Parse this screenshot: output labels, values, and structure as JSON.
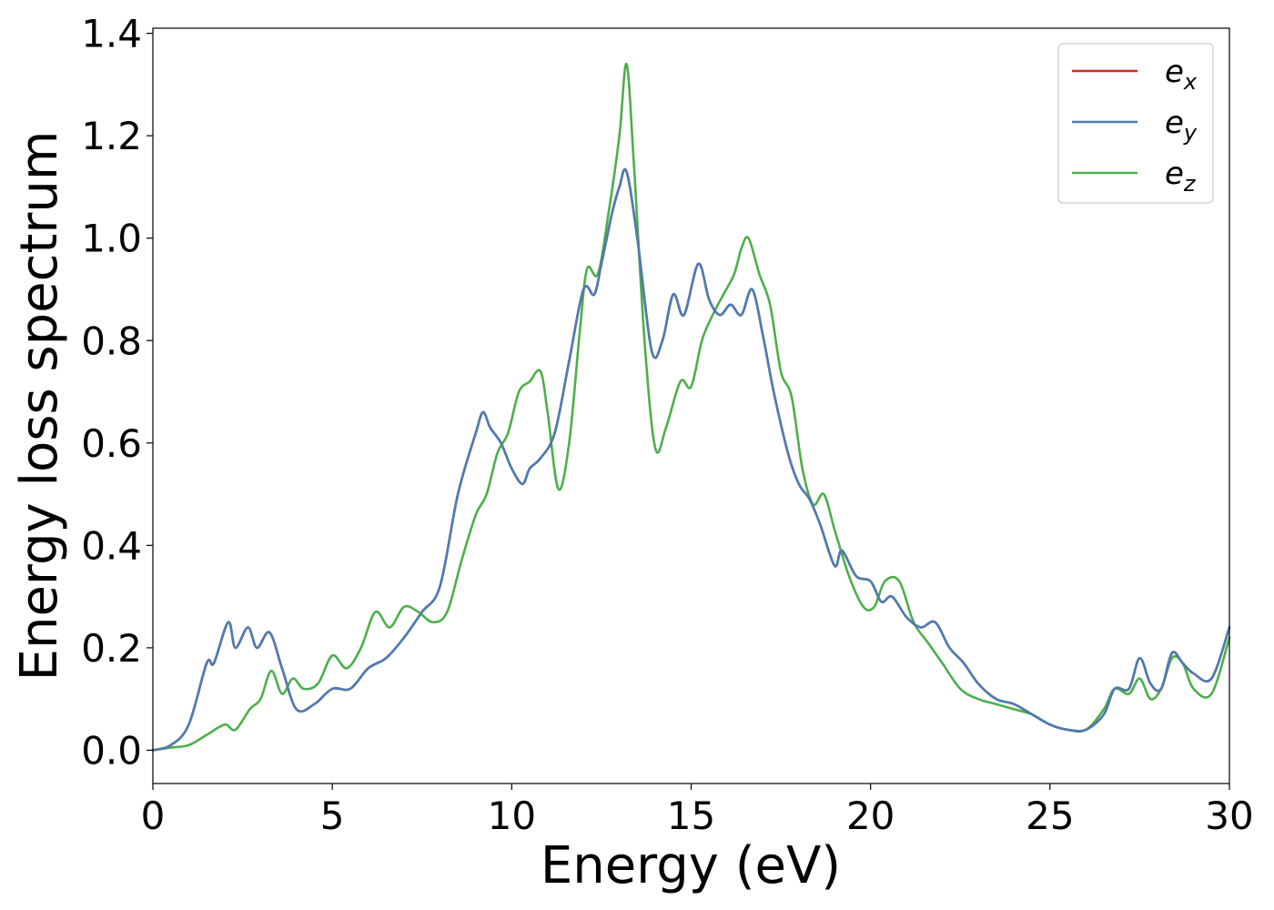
{
  "chart_data": {
    "type": "line",
    "title": "",
    "xlabel": "Energy (eV)",
    "ylabel": "Energy loss spectrum",
    "xlim": [
      0,
      30
    ],
    "ylim": [
      -0.065,
      1.41
    ],
    "xticks": [
      0,
      5,
      10,
      15,
      20,
      25,
      30
    ],
    "xtick_labels": [
      "0",
      "5",
      "10",
      "15",
      "20",
      "25",
      "30"
    ],
    "yticks": [
      0.0,
      0.2,
      0.4,
      0.6,
      0.8,
      1.0,
      1.2,
      1.4
    ],
    "ytick_labels": [
      "0.0",
      "0.2",
      "0.4",
      "0.6",
      "0.8",
      "1.0",
      "1.2",
      "1.4"
    ],
    "grid": false,
    "legend_position": "top-right",
    "series": [
      {
        "name": "e_x",
        "legend_base": "e",
        "legend_sub": "x",
        "color": "#d62728",
        "x": [
          0,
          0.5,
          1.0,
          1.5,
          1.7,
          2.1,
          2.3,
          2.65,
          2.9,
          3.25,
          3.6,
          4.0,
          4.5,
          5.0,
          5.5,
          6.0,
          6.5,
          7.0,
          7.5,
          8.0,
          8.5,
          9.0,
          9.2,
          9.4,
          9.7,
          10.0,
          10.3,
          10.5,
          10.8,
          11.2,
          11.6,
          12.0,
          12.3,
          12.5,
          12.8,
          13.0,
          13.2,
          13.5,
          13.9,
          14.2,
          14.5,
          14.8,
          15.2,
          15.5,
          15.8,
          16.1,
          16.4,
          16.7,
          17.0,
          17.3,
          17.7,
          18.0,
          18.3,
          18.6,
          19.0,
          19.2,
          19.6,
          20.0,
          20.3,
          20.6,
          21.0,
          21.4,
          21.8,
          22.2,
          22.6,
          23.0,
          23.5,
          24.0,
          24.5,
          25.0,
          25.5,
          26.0,
          26.5,
          26.8,
          27.2,
          27.5,
          27.8,
          28.1,
          28.4,
          28.7,
          29.0,
          29.5,
          30.0
        ],
        "y": [
          0.0,
          0.01,
          0.05,
          0.17,
          0.17,
          0.25,
          0.2,
          0.24,
          0.2,
          0.23,
          0.16,
          0.08,
          0.09,
          0.12,
          0.12,
          0.16,
          0.18,
          0.22,
          0.27,
          0.32,
          0.5,
          0.62,
          0.66,
          0.63,
          0.6,
          0.55,
          0.52,
          0.55,
          0.57,
          0.62,
          0.76,
          0.9,
          0.89,
          0.95,
          1.05,
          1.1,
          1.13,
          1.0,
          0.78,
          0.8,
          0.89,
          0.85,
          0.95,
          0.88,
          0.85,
          0.87,
          0.85,
          0.9,
          0.81,
          0.7,
          0.58,
          0.52,
          0.49,
          0.44,
          0.36,
          0.39,
          0.34,
          0.33,
          0.29,
          0.3,
          0.26,
          0.24,
          0.25,
          0.2,
          0.17,
          0.13,
          0.1,
          0.09,
          0.07,
          0.05,
          0.04,
          0.04,
          0.07,
          0.12,
          0.12,
          0.18,
          0.13,
          0.12,
          0.19,
          0.17,
          0.15,
          0.14,
          0.24
        ]
      },
      {
        "name": "e_y",
        "legend_base": "e",
        "legend_sub": "y",
        "color": "#4a7db3",
        "x": [
          0,
          0.5,
          1.0,
          1.5,
          1.7,
          2.1,
          2.3,
          2.65,
          2.9,
          3.25,
          3.6,
          4.0,
          4.5,
          5.0,
          5.5,
          6.0,
          6.5,
          7.0,
          7.5,
          8.0,
          8.5,
          9.0,
          9.2,
          9.4,
          9.7,
          10.0,
          10.3,
          10.5,
          10.8,
          11.2,
          11.6,
          12.0,
          12.3,
          12.5,
          12.8,
          13.0,
          13.2,
          13.5,
          13.9,
          14.2,
          14.5,
          14.8,
          15.2,
          15.5,
          15.8,
          16.1,
          16.4,
          16.7,
          17.0,
          17.3,
          17.7,
          18.0,
          18.3,
          18.6,
          19.0,
          19.2,
          19.6,
          20.0,
          20.3,
          20.6,
          21.0,
          21.4,
          21.8,
          22.2,
          22.6,
          23.0,
          23.5,
          24.0,
          24.5,
          25.0,
          25.5,
          26.0,
          26.5,
          26.8,
          27.2,
          27.5,
          27.8,
          28.1,
          28.4,
          28.7,
          29.0,
          29.5,
          30.0
        ],
        "y": [
          0.0,
          0.01,
          0.05,
          0.17,
          0.17,
          0.25,
          0.2,
          0.24,
          0.2,
          0.23,
          0.16,
          0.08,
          0.09,
          0.12,
          0.12,
          0.16,
          0.18,
          0.22,
          0.27,
          0.32,
          0.5,
          0.62,
          0.66,
          0.63,
          0.6,
          0.55,
          0.52,
          0.55,
          0.57,
          0.62,
          0.76,
          0.9,
          0.89,
          0.95,
          1.05,
          1.1,
          1.13,
          1.0,
          0.78,
          0.8,
          0.89,
          0.85,
          0.95,
          0.88,
          0.85,
          0.87,
          0.85,
          0.9,
          0.81,
          0.7,
          0.58,
          0.52,
          0.49,
          0.44,
          0.36,
          0.39,
          0.34,
          0.33,
          0.29,
          0.3,
          0.26,
          0.24,
          0.25,
          0.2,
          0.17,
          0.13,
          0.1,
          0.09,
          0.07,
          0.05,
          0.04,
          0.04,
          0.07,
          0.12,
          0.12,
          0.18,
          0.13,
          0.12,
          0.19,
          0.17,
          0.15,
          0.14,
          0.24
        ]
      },
      {
        "name": "e_z",
        "legend_base": "e",
        "legend_sub": "z",
        "color": "#4daf4a",
        "x": [
          0,
          0.5,
          1.0,
          1.5,
          2.0,
          2.3,
          2.7,
          3.0,
          3.3,
          3.6,
          3.9,
          4.2,
          4.6,
          5.0,
          5.4,
          5.8,
          6.2,
          6.6,
          7.0,
          7.4,
          7.8,
          8.2,
          8.6,
          9.0,
          9.3,
          9.6,
          9.9,
          10.2,
          10.5,
          10.8,
          11.0,
          11.3,
          11.6,
          11.9,
          12.1,
          12.4,
          12.7,
          13.0,
          13.2,
          13.4,
          13.7,
          14.0,
          14.3,
          14.7,
          15.0,
          15.3,
          15.6,
          15.9,
          16.2,
          16.4,
          16.6,
          16.9,
          17.2,
          17.5,
          17.8,
          18.1,
          18.4,
          18.7,
          19.0,
          19.4,
          19.8,
          20.1,
          20.4,
          20.8,
          21.2,
          21.6,
          22.0,
          22.5,
          23.0,
          23.5,
          24.0,
          24.5,
          25.0,
          25.5,
          26.0,
          26.5,
          26.8,
          27.2,
          27.5,
          27.8,
          28.1,
          28.4,
          28.7,
          29.0,
          29.5,
          30.0
        ],
        "y": [
          0.0,
          0.005,
          0.01,
          0.03,
          0.05,
          0.04,
          0.08,
          0.1,
          0.155,
          0.11,
          0.14,
          0.12,
          0.13,
          0.185,
          0.16,
          0.2,
          0.27,
          0.24,
          0.28,
          0.27,
          0.25,
          0.27,
          0.37,
          0.46,
          0.5,
          0.58,
          0.62,
          0.7,
          0.72,
          0.74,
          0.66,
          0.51,
          0.6,
          0.82,
          0.94,
          0.93,
          1.05,
          1.2,
          1.34,
          1.15,
          0.8,
          0.59,
          0.63,
          0.72,
          0.71,
          0.8,
          0.85,
          0.89,
          0.93,
          0.98,
          1.0,
          0.93,
          0.87,
          0.74,
          0.69,
          0.55,
          0.48,
          0.5,
          0.43,
          0.34,
          0.28,
          0.28,
          0.33,
          0.33,
          0.25,
          0.21,
          0.17,
          0.12,
          0.1,
          0.09,
          0.08,
          0.07,
          0.05,
          0.04,
          0.04,
          0.08,
          0.12,
          0.11,
          0.14,
          0.1,
          0.12,
          0.18,
          0.17,
          0.12,
          0.11,
          0.22
        ]
      }
    ]
  }
}
